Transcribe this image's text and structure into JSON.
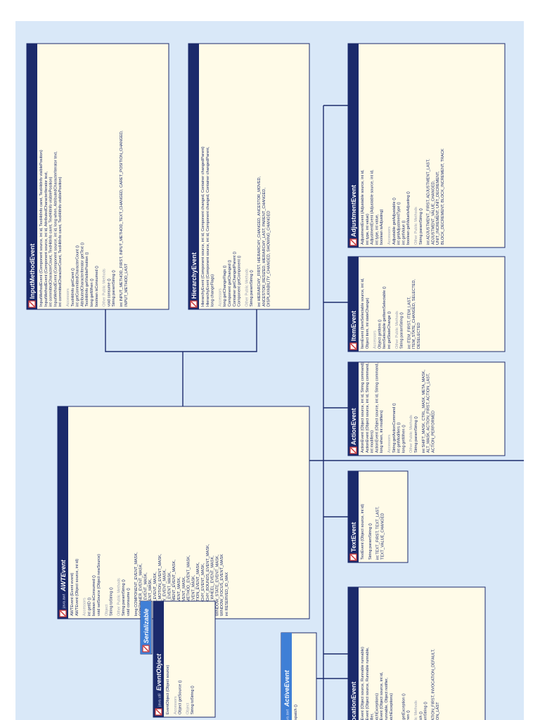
{
  "boxes": [
    {
      "title": "InputMethodEvent",
      "groups": [
        {
          "lines": [
            "InputMethodEvent (Component source, int id, TextHitInfo caret, TextHitInfo visiblePosition)",
            "InputMethodEvent (Component source, int id, AttributedCharacterIterator text,",
            "int committedCharacterCount, TextHitInfo caret, TextHitInfo visiblePosition)",
            "InputMethodEvent (Component source, int id, long when, AttributedCharacterIterator text,",
            "int committedCharacterCount, TextHitInfo caret, TextHitInfo visiblePosition)"
          ]
        },
        {
          "label": "Accessors",
          "lines": [
            "TextHitInfo getCaret ()",
            "int getCommittedCharacterCount ()",
            "AttributedCharacterIterator getText ()",
            "TextHitInfo getVisiblePosition ()",
            "long getWhen ()",
            "boolean isConsumed ()"
          ]
        },
        {
          "label": "Other Public Methods",
          "lines": [
            "void consume ()",
            "String paramString ()"
          ]
        },
        {
          "lines": [
            "int INPUT_METHOD_FIRST, INPUT_METHOD_TEXT_CHANGED, CARET_POSITION_CHANGED,",
            "INPUT_METHOD_LAST"
          ]
        }
      ]
    },
    {
      "title": "HierarchyEvent",
      "groups": [
        {
          "lines": [
            "HierarchyEvent (Component source, int id, Component changed, Container changedParent)",
            "HierarchyEvent (Component source, int id, Component changed, Container changedParent,",
            "long changeFlags)"
          ]
        },
        {
          "label": "Accessors",
          "lines": [
            "long getChangeFlags ()",
            "Component getChanged ()",
            "Container getChangedParent ()",
            "Component getComponent ()"
          ]
        },
        {
          "label": "Other Public Methods",
          "lines": [
            "String paramString ()"
          ]
        },
        {
          "lines": [
            "int HIERARCHY_FIRST, HIERARCHY_CHANGED, ANCESTOR_MOVED,",
            "ANCESTOR_RESIZED, HIERARCHY_LAST, PARENT_CHANGED,",
            "DISPLAYABILITY_CHANGED, SHOWING_CHANGED"
          ]
        }
      ]
    },
    {
      "title": "AdjustmentEvent",
      "groups": [
        {
          "lines": [
            "AdjustmentEvent (Adjustable source, int id,",
            "int type, int value)",
            "AdjustmentEvent (Adjustable source, int id,",
            "int type, int value,",
            "boolean isAdjusting)"
          ]
        },
        {
          "label": "Accessors",
          "lines": [
            "Adjustable getAdjustable ()",
            "int getAdjustmentType ()",
            "int getValue ()",
            "boolean getValueIsAdjusting ()"
          ]
        },
        {
          "label": "Other Public Methods",
          "lines": [
            "String paramString ()"
          ]
        },
        {
          "lines": [
            "int ADJUSTMENT_FIRST, ADJUSTMENT_LAST,",
            "ADJUSTMENT_VALUE_CHANGED,",
            "UNIT_INCREMENT, UNIT_DECREMENT,",
            "BLOCK_DECREMENT, BLOCK_INCREMENT, TRACK"
          ]
        }
      ]
    },
    {
      "title": "ItemEvent",
      "groups": [
        {
          "lines": [
            "ItemEvent (ItemSelectable source, int id,",
            "Object item, int stateChange)"
          ]
        },
        {
          "label": "Accessors",
          "lines": [
            "Object getItem ()",
            "ItemSelectable getItemSelectable ()",
            "int getStateChange ()"
          ]
        },
        {
          "label": "Other Public Methods",
          "lines": [
            "String paramString ()"
          ]
        },
        {
          "lines": [
            "int ITEM_FIRST, ITEM_LAST,",
            "ITEM_STATE_CHANGED, SELECTED,",
            "DESELECTED"
          ]
        }
      ]
    },
    {
      "title": "ActionEvent",
      "groups": [
        {
          "lines": [
            "ActionEvent (Object source, int id, String command)",
            "ActionEvent (Object source, int id, String command,",
            "int modifiers)",
            "ActionEvent (Object source, int id, String command,",
            "long when, int modifiers)"
          ]
        },
        {
          "label": "Accessors",
          "lines": [
            "String getActionCommand ()",
            "int getModifiers ()",
            "long getWhen ()"
          ]
        },
        {
          "label": "Other Public Methods",
          "lines": [
            "String paramString ()"
          ]
        },
        {
          "lines": [
            "int SHIFT_MASK, CTRL_MASK, META_MASK,",
            "ALT_MASK, ACTION_FIRST, ACTION_LAST,",
            "ACTION_PERFORMED"
          ]
        }
      ]
    },
    {
      "title": "TextEvent",
      "groups": [
        {
          "lines": [
            "TextEvent (Object source, int id)"
          ]
        },
        {
          "lines": [
            "String paramString ()"
          ]
        },
        {
          "lines": [
            "int TEXT_FIRST, TEXT_LAST,",
            "TEXT_VALUE_CHANGED"
          ]
        }
      ]
    },
    {
      "title": "InvocationEvent",
      "groups": [
        {
          "lines": [
            "InvocationEvent (Object source, Runnable runnable)",
            "InvocationEvent (Object source, Runnable runnable,",
            "Object notifier,",
            "boolean catchExceptions)",
            "InvocationEvent (Object source, int id,",
            "Runnable runnable, Object notifier,",
            "boolean catchExceptions)"
          ]
        },
        {
          "label": "Accessors",
          "lines": [
            "Exception getException ()",
            "long getWhen ()"
          ]
        },
        {
          "label": "Other Public Methods",
          "lines": [
            "void dispatch ()",
            "String paramString ()"
          ]
        },
        {
          "lines": [
            "int INVOCATION_FIRST, INVOCATION_DEFAULT,",
            "INVOCATION_LAST"
          ]
        }
      ]
    },
    {
      "title": "AWTEvent",
      "package": "java.awt",
      "groups": [
        {
          "lines": [
            "AWTEvent (Event event)",
            "AWTEvent (Object source, int id)"
          ]
        },
        {
          "label": "Accessors",
          "lines": [
            "int getID ()",
            "boolean isConsumed ()",
            "void setSource (Object newSource)"
          ]
        },
        {
          "label": "Object",
          "lines": [
            "String toString ()"
          ]
        },
        {
          "label": "Other Public Methods",
          "lines": [
            "String paramString ()",
            "void consume ()"
          ]
        },
        {
          "lines": [
            "long COMPONENT_EVENT_MASK,",
            "CONTAINER_EVENT_MASK,",
            "FOCUS_EVENT_MASK,",
            "KEY_EVENT_MASK,",
            "MOUSE_EVENT_MASK,",
            "MOUSE_MOTION_EVENT_MASK,",
            "WINDOW_EVENT_MASK,",
            "ACTION_EVENT_MASK,",
            "ADJUSTMENT_EVENT_MASK,",
            "ITEM_EVENT_MASK,",
            "TEXT_EVENT_MASK,",
            "INPUT_METHOD_EVENT_MASK,",
            "PAINT_EVENT_MASK,",
            "INVOCATION_EVENT_MASK,",
            "HIERARCHY_EVENT_MASK,",
            "HIERARCHY_BOUNDS_EVENT_MASK,",
            "MOUSE_WHEEL_EVENT_MASK,",
            "WINDOW_STATE_EVENT_MASK,",
            "WINDOW_FOCUS_EVENT_MASK",
            "int RESERVED_ID_MAX"
          ]
        }
      ]
    },
    {
      "title": "Serializable",
      "groups": []
    },
    {
      "title": "EventObject",
      "package": "java.util",
      "groups": [
        {
          "lines": [
            "EventObject (Object source)"
          ]
        },
        {
          "label": "Accessors",
          "lines": [
            "Object getSource ()"
          ]
        },
        {
          "label": "Object",
          "lines": [
            "String toString ()"
          ]
        }
      ]
    },
    {
      "title": "ActiveEvent",
      "package": "java.awt",
      "groups": [
        {
          "lines": [
            "void dispatch ()"
          ]
        }
      ]
    }
  ]
}
